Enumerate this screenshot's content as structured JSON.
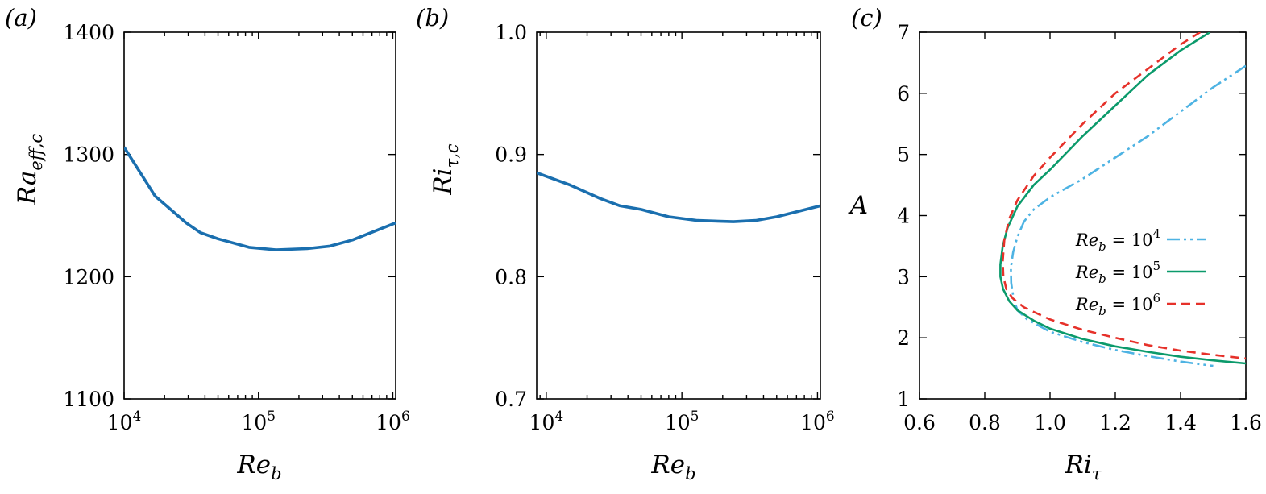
{
  "colors": {
    "panel_line": "#1a6faf",
    "re4": "#4eb3e3",
    "re5": "#0b9a6b",
    "re6": "#e6312a",
    "axis": "#000000"
  },
  "chart_data": [
    {
      "id": "a",
      "type": "line",
      "panel_label": "(a)",
      "xlabel": "Re_b",
      "ylabel": "Ra_eff,c",
      "xscale": "log",
      "xlim": [
        10000,
        1050000
      ],
      "ylim": [
        1100,
        1400
      ],
      "xticks": [
        10000,
        100000,
        1000000
      ],
      "xtick_labels": [
        [
          "10",
          "4"
        ],
        [
          "10",
          "5"
        ],
        [
          "10",
          "6"
        ]
      ],
      "yticks": [
        1100,
        1200,
        1300,
        1400
      ],
      "ytick_labels": [
        "1100",
        "1200",
        "1300",
        "1400"
      ],
      "series": [
        {
          "x": [
            10000,
            17000,
            29000,
            37000,
            50000,
            85000,
            135000,
            230000,
            340000,
            500000,
            1050000
          ],
          "y": [
            1306,
            1266,
            1244,
            1236,
            1231,
            1224,
            1222,
            1223,
            1225,
            1230,
            1244
          ]
        }
      ]
    },
    {
      "id": "b",
      "type": "line",
      "panel_label": "(b)",
      "xlabel": "Re_b",
      "ylabel": "Ri_τ,c",
      "xscale": "log",
      "xlim": [
        8500,
        1050000
      ],
      "ylim": [
        0.7,
        1.0
      ],
      "xticks": [
        10000,
        100000,
        1000000
      ],
      "xtick_labels": [
        [
          "10",
          "4"
        ],
        [
          "10",
          "5"
        ],
        [
          "10",
          "6"
        ]
      ],
      "yticks": [
        0.7,
        0.8,
        0.9,
        1.0
      ],
      "ytick_labels": [
        "0.7",
        "0.8",
        "0.9",
        "1.0"
      ],
      "series": [
        {
          "x": [
            8500,
            15000,
            25000,
            35000,
            50000,
            80000,
            130000,
            240000,
            350000,
            500000,
            1050000
          ],
          "y": [
            0.885,
            0.875,
            0.864,
            0.858,
            0.855,
            0.849,
            0.846,
            0.845,
            0.846,
            0.849,
            0.858
          ]
        }
      ]
    },
    {
      "id": "c",
      "type": "line",
      "panel_label": "(c)",
      "xlabel": "Ri_τ",
      "ylabel": "A",
      "xscale": "linear",
      "xlim": [
        0.6,
        1.6
      ],
      "ylim": [
        1,
        7
      ],
      "xticks": [
        0.6,
        0.8,
        1.0,
        1.2,
        1.4,
        1.6
      ],
      "xtick_labels": [
        "0.6",
        "0.8",
        "1.0",
        "1.2",
        "1.4",
        "1.6"
      ],
      "yticks": [
        1,
        2,
        3,
        4,
        5,
        6,
        7
      ],
      "ytick_labels": [
        "1",
        "2",
        "3",
        "4",
        "5",
        "6",
        "7"
      ],
      "legend_position": "right-middle",
      "series": [
        {
          "name": "Re_b = 10^4",
          "legend_base": "Re",
          "legend_sub": "b",
          "legend_eq": " = 10",
          "legend_sup": "4",
          "color_key": "re4",
          "dash": "16 5 3 5 3 5",
          "x": [
            1.6,
            1.5,
            1.4,
            1.3,
            1.2,
            1.1,
            1.0,
            0.95,
            0.92,
            0.9,
            0.887,
            0.88,
            0.881,
            0.888,
            0.9,
            0.93,
            1.0,
            1.1,
            1.2,
            1.3,
            1.4,
            1.5
          ],
          "y": [
            6.45,
            6.1,
            5.7,
            5.3,
            4.95,
            4.6,
            4.3,
            4.1,
            3.9,
            3.65,
            3.4,
            3.15,
            2.9,
            2.65,
            2.45,
            2.3,
            2.1,
            1.93,
            1.8,
            1.7,
            1.61,
            1.54
          ]
        },
        {
          "name": "Re_b = 10^5",
          "legend_base": "Re",
          "legend_sub": "b",
          "legend_eq": " = 10",
          "legend_sup": "5",
          "color_key": "re5",
          "dash": "",
          "x": [
            1.49,
            1.4,
            1.3,
            1.2,
            1.1,
            1.0,
            0.95,
            0.9,
            0.87,
            0.855,
            0.848,
            0.848,
            0.856,
            0.875,
            0.9,
            0.95,
            1.0,
            1.1,
            1.2,
            1.3,
            1.4,
            1.5,
            1.6
          ],
          "y": [
            7.0,
            6.7,
            6.3,
            5.8,
            5.3,
            4.75,
            4.5,
            4.15,
            3.8,
            3.5,
            3.2,
            3.0,
            2.8,
            2.6,
            2.45,
            2.28,
            2.15,
            1.98,
            1.86,
            1.77,
            1.69,
            1.63,
            1.58
          ]
        },
        {
          "name": "Re_b = 10^6",
          "legend_base": "Re",
          "legend_sub": "b",
          "legend_eq": " = 10",
          "legend_sup": "6",
          "color_key": "re6",
          "dash": "11 7",
          "x": [
            1.46,
            1.4,
            1.3,
            1.2,
            1.1,
            1.0,
            0.95,
            0.9,
            0.875,
            0.86,
            0.855,
            0.857,
            0.866,
            0.885,
            0.92,
            1.0,
            1.1,
            1.2,
            1.3,
            1.4,
            1.5,
            1.6
          ],
          "y": [
            7.0,
            6.8,
            6.4,
            6.0,
            5.5,
            4.95,
            4.65,
            4.25,
            3.95,
            3.6,
            3.25,
            3.0,
            2.8,
            2.65,
            2.5,
            2.3,
            2.13,
            2.0,
            1.88,
            1.79,
            1.72,
            1.66
          ]
        }
      ]
    }
  ]
}
